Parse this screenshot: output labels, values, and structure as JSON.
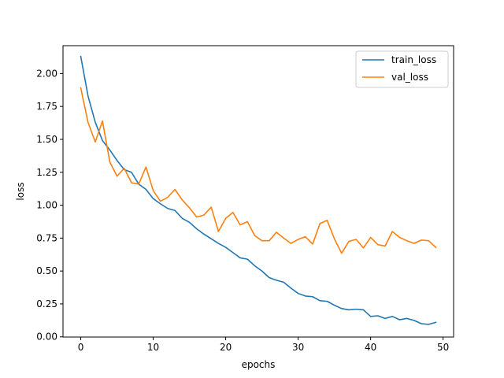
{
  "chart_data": {
    "type": "line",
    "title": "",
    "xlabel": "epochs",
    "ylabel": "loss",
    "xlim": [
      -2.45,
      51.45
    ],
    "ylim": [
      -0.0015,
      2.2115
    ],
    "xticks": [
      0,
      10,
      20,
      30,
      40,
      50
    ],
    "yticks": [
      0.0,
      0.25,
      0.5,
      0.75,
      1.0,
      1.25,
      1.5,
      1.75,
      2.0
    ],
    "ytick_format": 2,
    "grid": false,
    "legend_position": "top-right",
    "x": [
      0,
      1,
      2,
      3,
      4,
      5,
      6,
      7,
      8,
      9,
      10,
      11,
      12,
      13,
      14,
      15,
      16,
      17,
      18,
      19,
      20,
      21,
      22,
      23,
      24,
      25,
      26,
      27,
      28,
      29,
      30,
      31,
      32,
      33,
      34,
      35,
      36,
      37,
      38,
      39,
      40,
      41,
      42,
      43,
      44,
      45,
      46,
      47,
      48,
      49
    ],
    "series": [
      {
        "name": "train_loss",
        "color": "#1f77b4",
        "values": [
          2.13,
          1.83,
          1.63,
          1.49,
          1.42,
          1.34,
          1.27,
          1.25,
          1.16,
          1.12,
          1.05,
          1.01,
          0.975,
          0.96,
          0.9,
          0.87,
          0.82,
          0.78,
          0.745,
          0.71,
          0.68,
          0.64,
          0.6,
          0.59,
          0.54,
          0.5,
          0.45,
          0.43,
          0.415,
          0.37,
          0.33,
          0.31,
          0.305,
          0.275,
          0.27,
          0.24,
          0.215,
          0.205,
          0.21,
          0.205,
          0.155,
          0.16,
          0.14,
          0.155,
          0.13,
          0.14,
          0.125,
          0.1,
          0.095,
          0.11
        ]
      },
      {
        "name": "val_loss",
        "color": "#ff7f0e",
        "values": [
          1.89,
          1.63,
          1.48,
          1.64,
          1.33,
          1.22,
          1.28,
          1.17,
          1.16,
          1.29,
          1.11,
          1.03,
          1.06,
          1.12,
          1.04,
          0.98,
          0.91,
          0.925,
          0.985,
          0.8,
          0.9,
          0.945,
          0.85,
          0.875,
          0.77,
          0.73,
          0.73,
          0.795,
          0.75,
          0.71,
          0.74,
          0.76,
          0.705,
          0.86,
          0.885,
          0.745,
          0.635,
          0.725,
          0.74,
          0.675,
          0.755,
          0.7,
          0.69,
          0.8,
          0.755,
          0.73,
          0.71,
          0.735,
          0.73,
          0.68
        ]
      }
    ]
  }
}
